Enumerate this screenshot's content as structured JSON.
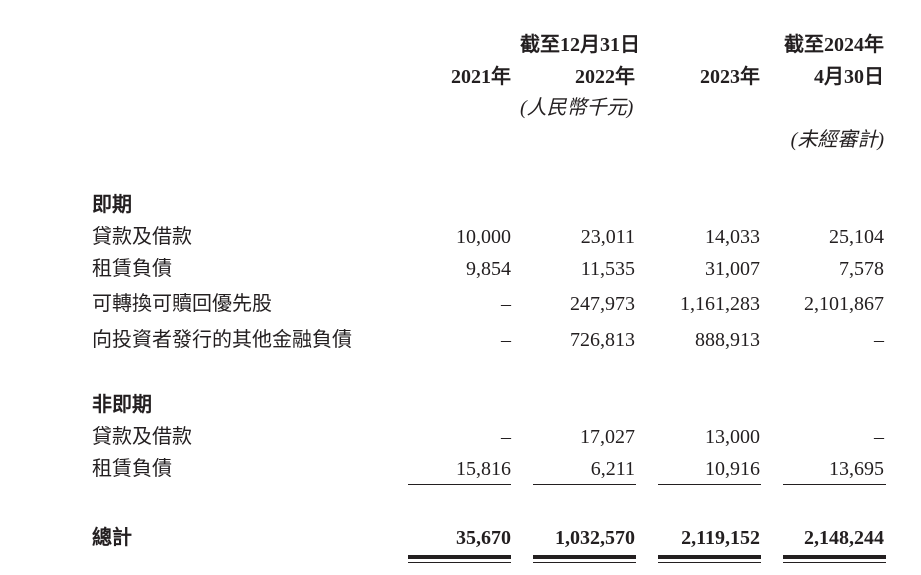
{
  "header": {
    "group_label": "截至12月31日",
    "last_label_line1": "截至2024年",
    "years": [
      "2021年",
      "2022年",
      "2023年",
      "4月30日"
    ],
    "currency_note": "(人民幣千元)",
    "unaudited_note": "(未經審計)"
  },
  "sections": [
    {
      "title": "即期",
      "rows": [
        {
          "label": "貸款及借款",
          "values": [
            "10,000",
            "23,011",
            "14,033",
            "25,104"
          ]
        },
        {
          "label": "租賃負債",
          "values": [
            "9,854",
            "11,535",
            "31,007",
            "7,578"
          ]
        },
        {
          "label": "可轉換可贖回優先股",
          "values": [
            "–",
            "247,973",
            "1,161,283",
            "2,101,867"
          ]
        },
        {
          "label": "向投資者發行的其他金融負債",
          "values": [
            "–",
            "726,813",
            "888,913",
            "–"
          ]
        }
      ]
    },
    {
      "title": "非即期",
      "rows": [
        {
          "label": "貸款及借款",
          "values": [
            "–",
            "17,027",
            "13,000",
            "–"
          ]
        },
        {
          "label": "租賃負債",
          "values": [
            "15,816",
            "6,211",
            "10,916",
            "13,695"
          ]
        }
      ]
    }
  ],
  "total": {
    "label": "總計",
    "values": [
      "35,670",
      "1,032,570",
      "2,119,152",
      "2,148,244"
    ]
  }
}
